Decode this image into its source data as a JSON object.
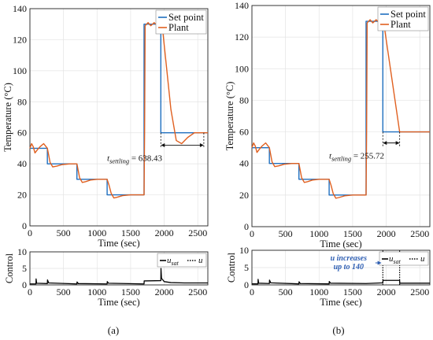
{
  "colors": {
    "setpoint": "#1f6fbf",
    "plant": "#e06020",
    "control": "#000000",
    "annotation_blue": "#2f5fb3"
  },
  "panels": [
    {
      "id": "a",
      "label": "(a)",
      "top": {
        "ylabel": "Temperature (°C)",
        "xlabel": "Time (sec)",
        "xlim": [
          0,
          2650
        ],
        "ylim": [
          0,
          140
        ],
        "xticks": [
          0,
          500,
          1000,
          1500,
          2000,
          2500
        ],
        "yticks": [
          0,
          20,
          40,
          60,
          80,
          100,
          120,
          140
        ],
        "legend": [
          "Set point",
          "Plant"
        ],
        "annotation": {
          "text": "t",
          "subscript": "settling",
          "value": " = 638.43"
        },
        "settling_arrow": {
          "x0": 1950,
          "x1": 2590,
          "y": 52
        }
      },
      "bottom": {
        "ylabel": "Control",
        "xlabel": "Time (sec)",
        "xlim": [
          0,
          2650
        ],
        "ylim": [
          0,
          10
        ],
        "xticks": [
          0,
          500,
          1000,
          1500,
          2000,
          2500
        ],
        "yticks": [
          0,
          5,
          10
        ],
        "legend": {
          "solid": "u",
          "solid_sub": "sat",
          "dotted": "u"
        }
      }
    },
    {
      "id": "b",
      "label": "(b)",
      "top": {
        "ylabel": "Temperature (°C)",
        "xlabel": "Time (sec)",
        "xlim": [
          0,
          2650
        ],
        "ylim": [
          0,
          140
        ],
        "xticks": [
          0,
          500,
          1000,
          1500,
          2000,
          2500
        ],
        "yticks": [
          0,
          20,
          40,
          60,
          80,
          100,
          120,
          140
        ],
        "legend": [
          "Set point",
          "Plant"
        ],
        "annotation": {
          "text": "t",
          "subscript": "settling",
          "value": " = 255.72"
        },
        "settling_arrow": {
          "x0": 1950,
          "x1": 2200,
          "y": 53
        }
      },
      "bottom": {
        "ylabel": "Control",
        "xlabel": "Time (sec)",
        "xlim": [
          0,
          2650
        ],
        "ylim": [
          0,
          10
        ],
        "xticks": [
          0,
          500,
          1000,
          1500,
          2000,
          2500
        ],
        "yticks": [
          0,
          5,
          10
        ],
        "legend": {
          "solid": "u",
          "solid_sub": "sat",
          "dotted": "u"
        },
        "note": [
          "u increases",
          "up to 140"
        ]
      }
    }
  ],
  "chart_data": [
    {
      "type": "line",
      "panel": "a",
      "title": "",
      "xlabel": "Time (sec)",
      "ylabel": "Temperature (°C)",
      "xlim": [
        0,
        2650
      ],
      "ylim": [
        0,
        140
      ],
      "series": [
        {
          "name": "Set point",
          "points": [
            [
              0,
              50
            ],
            [
              260,
              50
            ],
            [
              260,
              40
            ],
            [
              700,
              40
            ],
            [
              700,
              30
            ],
            [
              1150,
              30
            ],
            [
              1150,
              20
            ],
            [
              1700,
              20
            ],
            [
              1700,
              130
            ],
            [
              1950,
              130
            ],
            [
              1950,
              60
            ],
            [
              2650,
              60
            ]
          ]
        },
        {
          "name": "Plant",
          "points": [
            [
              0,
              50
            ],
            [
              25,
              53
            ],
            [
              50,
              51
            ],
            [
              75,
              47
            ],
            [
              110,
              49
            ],
            [
              150,
              51
            ],
            [
              205,
              53
            ],
            [
              260,
              50
            ],
            [
              300,
              41
            ],
            [
              340,
              38
            ],
            [
              400,
              38.5
            ],
            [
              480,
              39.5
            ],
            [
              600,
              40
            ],
            [
              700,
              40
            ],
            [
              740,
              31
            ],
            [
              780,
              28
            ],
            [
              830,
              28.5
            ],
            [
              900,
              29.5
            ],
            [
              1000,
              30
            ],
            [
              1150,
              30
            ],
            [
              1180,
              26
            ],
            [
              1210,
              21
            ],
            [
              1250,
              18
            ],
            [
              1300,
              18.5
            ],
            [
              1380,
              19.5
            ],
            [
              1500,
              20
            ],
            [
              1700,
              20
            ],
            [
              1708,
              60
            ],
            [
              1716,
              129
            ],
            [
              1760,
              131
            ],
            [
              1800,
              129
            ],
            [
              1850,
              131
            ],
            [
              1900,
              129
            ],
            [
              1950,
              131
            ],
            [
              1980,
              125
            ],
            [
              2100,
              75
            ],
            [
              2180,
              55
            ],
            [
              2260,
              53
            ],
            [
              2350,
              57
            ],
            [
              2450,
              60
            ],
            [
              2550,
              60
            ],
            [
              2650,
              60
            ]
          ]
        }
      ]
    },
    {
      "type": "line",
      "panel": "a",
      "title": "",
      "xlabel": "Time (sec)",
      "ylabel": "Control",
      "xlim": [
        0,
        2650
      ],
      "ylim": [
        0,
        10
      ],
      "series": [
        {
          "name": "u_sat",
          "points": [
            [
              0,
              0.3
            ],
            [
              90,
              0.3
            ],
            [
              92,
              1.8
            ],
            [
              100,
              0.5
            ],
            [
              260,
              0.4
            ],
            [
              262,
              1.5
            ],
            [
              280,
              0.6
            ],
            [
              700,
              0.3
            ],
            [
              702,
              0.9
            ],
            [
              720,
              0.4
            ],
            [
              1150,
              0.3
            ],
            [
              1152,
              1.0
            ],
            [
              1170,
              0.5
            ],
            [
              1700,
              0.3
            ],
            [
              1702,
              1.2
            ],
            [
              1950,
              1.3
            ],
            [
              1952,
              5.0
            ],
            [
              1960,
              2.0
            ],
            [
              2000,
              1.0
            ],
            [
              2100,
              0.7
            ],
            [
              2300,
              0.6
            ],
            [
              2650,
              0.6
            ]
          ]
        }
      ]
    },
    {
      "type": "line",
      "panel": "b",
      "title": "",
      "xlabel": "Time (sec)",
      "ylabel": "Temperature (°C)",
      "xlim": [
        0,
        2650
      ],
      "ylim": [
        0,
        140
      ],
      "series": [
        {
          "name": "Set point",
          "points": [
            [
              0,
              50
            ],
            [
              260,
              50
            ],
            [
              260,
              40
            ],
            [
              700,
              40
            ],
            [
              700,
              30
            ],
            [
              1150,
              30
            ],
            [
              1150,
              20
            ],
            [
              1700,
              20
            ],
            [
              1700,
              130
            ],
            [
              1950,
              130
            ],
            [
              1950,
              60
            ],
            [
              2650,
              60
            ]
          ]
        },
        {
          "name": "Plant",
          "points": [
            [
              0,
              50
            ],
            [
              25,
              53
            ],
            [
              50,
              51
            ],
            [
              75,
              47
            ],
            [
              110,
              49
            ],
            [
              150,
              51
            ],
            [
              205,
              53
            ],
            [
              260,
              50
            ],
            [
              300,
              41
            ],
            [
              340,
              38
            ],
            [
              400,
              38.5
            ],
            [
              480,
              39.5
            ],
            [
              600,
              40
            ],
            [
              700,
              40
            ],
            [
              740,
              31
            ],
            [
              780,
              28
            ],
            [
              830,
              28.5
            ],
            [
              900,
              29.5
            ],
            [
              1000,
              30
            ],
            [
              1150,
              30
            ],
            [
              1180,
              26
            ],
            [
              1210,
              21
            ],
            [
              1250,
              18
            ],
            [
              1300,
              18.5
            ],
            [
              1380,
              19.5
            ],
            [
              1500,
              20
            ],
            [
              1700,
              20
            ],
            [
              1708,
              60
            ],
            [
              1716,
              129
            ],
            [
              1760,
              131
            ],
            [
              1800,
              129
            ],
            [
              1850,
              131
            ],
            [
              1900,
              129
            ],
            [
              1950,
              131
            ],
            [
              1970,
              127
            ],
            [
              2200,
              60
            ],
            [
              2650,
              60
            ]
          ]
        }
      ]
    },
    {
      "type": "line",
      "panel": "b",
      "title": "",
      "xlabel": "Time (sec)",
      "ylabel": "Control",
      "xlim": [
        0,
        2650
      ],
      "ylim": [
        0,
        10
      ],
      "series": [
        {
          "name": "u_sat",
          "points": [
            [
              0,
              0.3
            ],
            [
              90,
              0.3
            ],
            [
              92,
              1.6
            ],
            [
              100,
              0.5
            ],
            [
              260,
              0.4
            ],
            [
              262,
              1.4
            ],
            [
              280,
              0.6
            ],
            [
              700,
              0.3
            ],
            [
              702,
              0.9
            ],
            [
              720,
              0.4
            ],
            [
              1150,
              0.3
            ],
            [
              1152,
              1.0
            ],
            [
              1170,
              0.5
            ],
            [
              1700,
              0.4
            ],
            [
              1950,
              0.6
            ],
            [
              1952,
              1.3
            ],
            [
              2200,
              1.3
            ],
            [
              2202,
              0.5
            ],
            [
              2650,
              0.5
            ]
          ]
        },
        {
          "name": "u",
          "points": [
            [
              1950,
              0
            ],
            [
              1950,
              10
            ]
          ]
        },
        {
          "name": "u",
          "points": [
            [
              2200,
              0
            ],
            [
              2200,
              10
            ]
          ]
        }
      ]
    }
  ]
}
